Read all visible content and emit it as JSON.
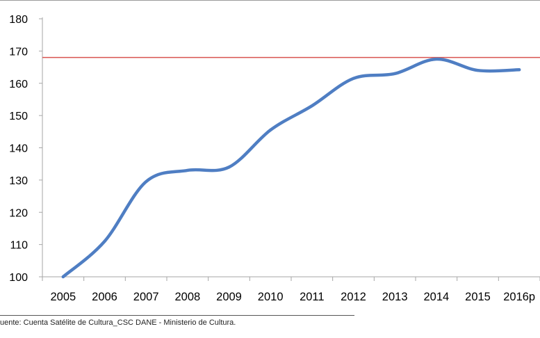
{
  "chart_data": {
    "type": "line",
    "categories": [
      "2005",
      "2006",
      "2007",
      "2008",
      "2009",
      "2010",
      "2011",
      "2012",
      "2013",
      "2014",
      "2015",
      "2016p"
    ],
    "series": [
      {
        "values": [
          100,
          111,
          129.5,
          133,
          134,
          145.5,
          153,
          161.5,
          163,
          167.5,
          164,
          164.2
        ],
        "color": "#4f7ec3"
      }
    ],
    "reference_line": {
      "value": 168,
      "color": "#d9534f"
    },
    "yticks": [
      100,
      110,
      120,
      130,
      140,
      150,
      160,
      170,
      180
    ],
    "ylim": [
      100,
      180
    ],
    "grid": false,
    "legend": "none"
  },
  "source_note": "uente:  Cuenta Satélite de Cultura_CSC DANE - Ministerio de Cultura."
}
